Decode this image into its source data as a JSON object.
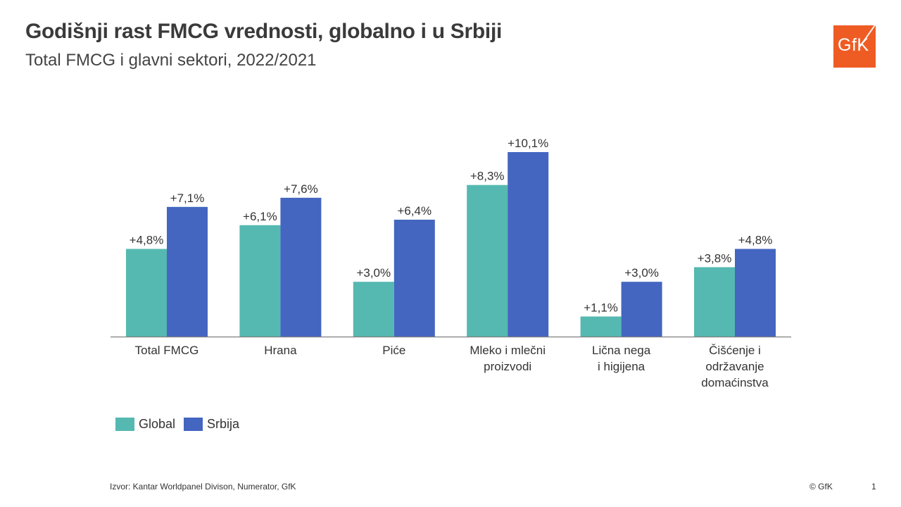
{
  "header": {
    "title": "Godišnji rast FMCG vrednosti, globalno i u Srbiji",
    "subtitle": "Total FMCG i glavni sektori, 2022/2021"
  },
  "logo": {
    "text": "GfK",
    "color": "#ee5c24"
  },
  "chart_data": {
    "type": "bar",
    "title": "Godišnji rast FMCG vrednosti, globalno i u Srbiji",
    "subtitle": "Total FMCG i glavni sektori, 2022/2021",
    "categories": [
      [
        "Total FMCG"
      ],
      [
        "Hrana"
      ],
      [
        "Piće"
      ],
      [
        "Mleko i mlečni",
        "proizvodi"
      ],
      [
        "Lična nega",
        "i higijena"
      ],
      [
        "Čišćenje i",
        "održavanje",
        "domaćinstva"
      ]
    ],
    "series": [
      {
        "name": "Global",
        "color": "#55b9b1",
        "values": [
          4.8,
          6.1,
          3.0,
          8.3,
          1.1,
          3.8
        ],
        "labels": [
          "+4,8%",
          "+6,1%",
          "+3,0%",
          "+8,3%",
          "+1,1%",
          "+3,8%"
        ]
      },
      {
        "name": "Srbija",
        "color": "#4466c1",
        "values": [
          7.1,
          7.6,
          6.4,
          10.1,
          3.0,
          4.8
        ],
        "labels": [
          "+7,1%",
          "+7,6%",
          "+6,4%",
          "+10,1%",
          "+3,0%",
          "+4,8%"
        ]
      }
    ],
    "ylim": [
      0,
      10.1
    ],
    "grid": false,
    "legend_position": "bottom-left"
  },
  "footer": {
    "source": "Izvor: Kantar Worldpanel Divison, Numerator, GfK",
    "copyright": "© GfK",
    "page_number": "1"
  }
}
